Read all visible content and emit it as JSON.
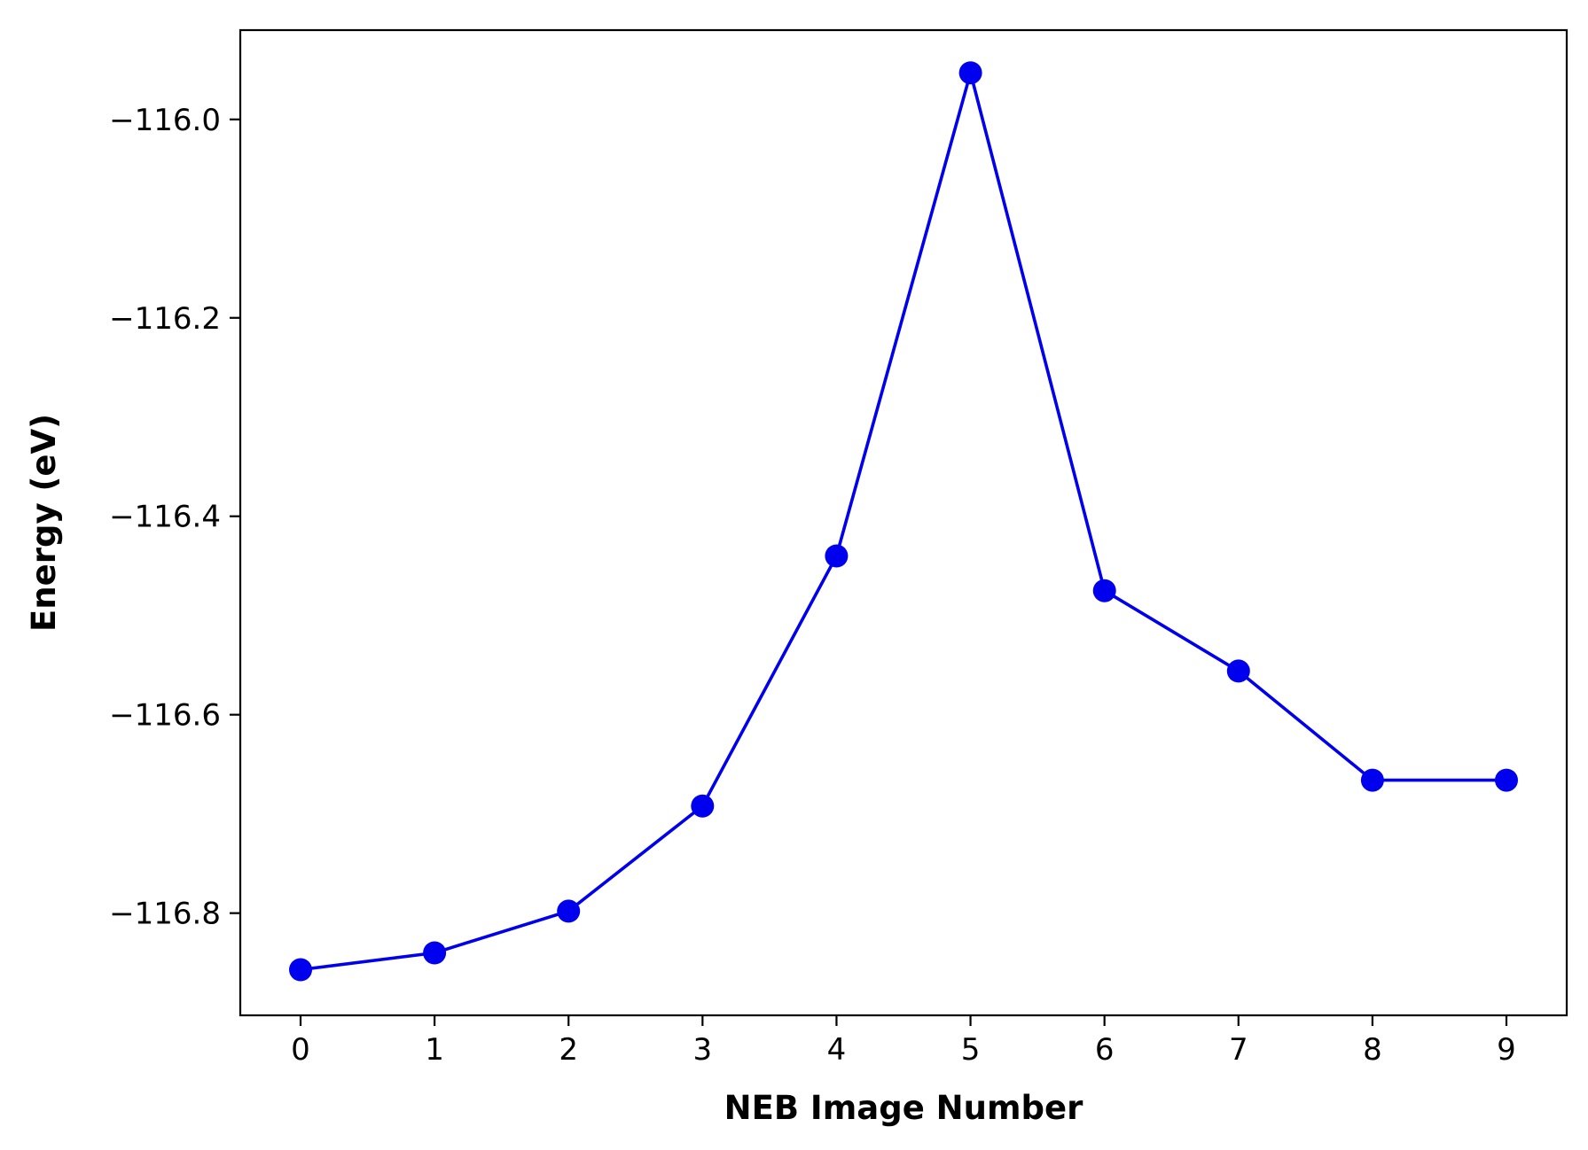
{
  "chart_data": {
    "type": "line",
    "title": "",
    "xlabel": "NEB Image Number",
    "ylabel": "Energy (eV)",
    "x": [
      0,
      1,
      2,
      3,
      4,
      5,
      6,
      7,
      8,
      9
    ],
    "series": [
      {
        "values": [
          -116.857,
          -116.84,
          -116.798,
          -116.692,
          -116.44,
          -115.953,
          -116.475,
          -116.556,
          -116.666,
          -116.666
        ],
        "color": "#0000ee",
        "marker": "circle"
      }
    ],
    "xlim": [
      -0.45,
      9.45
    ],
    "ylim": [
      -116.903,
      -115.91
    ],
    "xticks": [
      0,
      1,
      2,
      3,
      4,
      5,
      6,
      7,
      8,
      9
    ],
    "xtick_labels": [
      "0",
      "1",
      "2",
      "3",
      "4",
      "5",
      "6",
      "7",
      "8",
      "9"
    ],
    "yticks": [
      -116.8,
      -116.6,
      -116.4,
      -116.2,
      -116.0
    ],
    "ytick_labels": [
      "−116.8",
      "−116.6",
      "−116.4",
      "−116.2",
      "−116.0"
    ],
    "grid": false,
    "legend": "none"
  }
}
